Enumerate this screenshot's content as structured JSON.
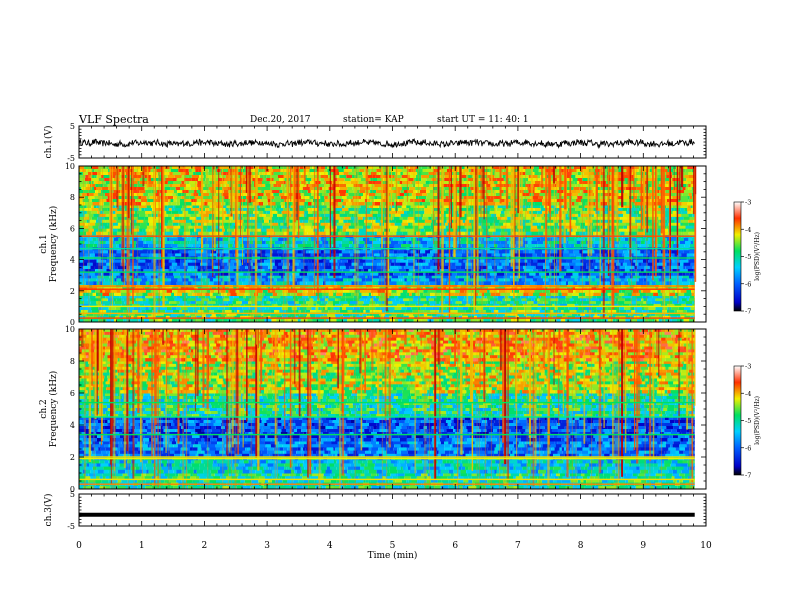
{
  "header": {
    "title": "VLF Spectra",
    "date": "Dec.20, 2017",
    "station": "station= KAP",
    "start": "start  UT =   11: 40: 1"
  },
  "chart_data": [
    {
      "type": "line",
      "panel": "ch1-waveform",
      "ylabel": "ch.1(V)",
      "ylim": [
        -5,
        5
      ],
      "yticks": [
        "5",
        "-5"
      ],
      "xlim": [
        0,
        10
      ],
      "series": [
        {
          "values_description": "noisy waveform oscillating around -0.5 V, range about -1.5 to 1"
        }
      ]
    },
    {
      "type": "heatmap",
      "panel": "ch1-spectrogram",
      "ylabel": "ch.1\nFrequency (kHz)",
      "ylim": [
        0,
        10
      ],
      "yticks": [
        "0",
        "2",
        "4",
        "6",
        "8",
        "10"
      ],
      "xlim": [
        0,
        10
      ],
      "colorbar": {
        "label": "log(PSD)(V²/Hz)",
        "ticks": [
          "-3",
          "-4",
          "-5",
          "-6",
          "-7"
        ],
        "range": [
          -7,
          -3
        ]
      },
      "bands": [
        {
          "f": [
            0,
            0.8
          ],
          "level": -4.8
        },
        {
          "f": [
            0.8,
            1.7
          ],
          "level": -5.0
        },
        {
          "f": [
            1.7,
            2.4
          ],
          "level": -4.3
        },
        {
          "f": [
            2.4,
            3.0
          ],
          "level": -5.6
        },
        {
          "f": [
            3.0,
            4.8
          ],
          "level": -6.0
        },
        {
          "f": [
            4.8,
            5.6
          ],
          "level": -5.4
        },
        {
          "f": [
            5.6,
            7.5
          ],
          "level": -4.6
        },
        {
          "f": [
            7.5,
            10
          ],
          "level": -4.2
        }
      ]
    },
    {
      "type": "heatmap",
      "panel": "ch2-spectrogram",
      "ylabel": "ch.2\nFrequency (kHz)",
      "ylim": [
        0,
        10
      ],
      "yticks": [
        "0",
        "2",
        "4",
        "6",
        "8",
        "10"
      ],
      "xlim": [
        0,
        10
      ],
      "colorbar": {
        "label": "log(PSD)(V²/Hz)",
        "ticks": [
          "-3",
          "-4",
          "-5",
          "-6",
          "-7"
        ],
        "range": [
          -7,
          -3
        ]
      },
      "bands": [
        {
          "f": [
            0,
            1.0
          ],
          "level": -5.0
        },
        {
          "f": [
            1.0,
            2.0
          ],
          "level": -5.3
        },
        {
          "f": [
            2.0,
            3.0
          ],
          "level": -5.9
        },
        {
          "f": [
            3.0,
            4.5
          ],
          "level": -6.1
        },
        {
          "f": [
            4.5,
            6.0
          ],
          "level": -5.0
        },
        {
          "f": [
            6.0,
            8.0
          ],
          "level": -4.4
        },
        {
          "f": [
            8.0,
            10
          ],
          "level": -4.0
        }
      ]
    },
    {
      "type": "line",
      "panel": "ch3-waveform",
      "ylabel": "ch.3(V)",
      "ylim": [
        -5,
        5
      ],
      "yticks": [
        "5",
        "-5"
      ],
      "xlim": [
        0,
        10
      ],
      "series": [
        {
          "values_description": "flat line at about -1.5 V"
        }
      ]
    }
  ],
  "xaxis": {
    "label": "Time (min)",
    "ticks": [
      "0",
      "1",
      "2",
      "3",
      "4",
      "5",
      "6",
      "7",
      "8",
      "9",
      "10"
    ]
  }
}
